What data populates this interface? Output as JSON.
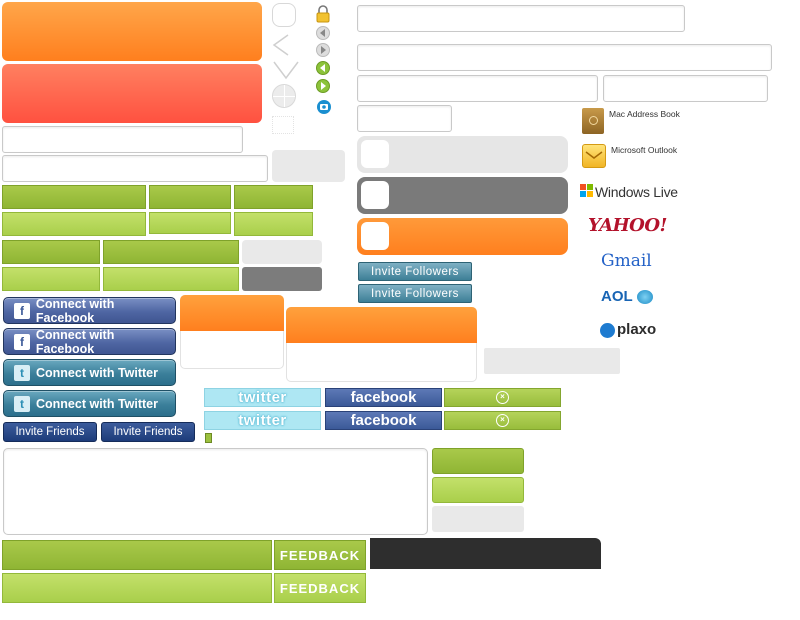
{
  "social": {
    "connect_facebook_1": "Connect with Facebook",
    "connect_facebook_2": "Connect with Facebook",
    "connect_twitter_1": "Connect with Twitter",
    "connect_twitter_2": "Connect with Twitter",
    "facebook_icon_glyph": "f",
    "twitter_icon_glyph": "t",
    "twitter_button_1": "twitter",
    "twitter_button_2": "twitter",
    "facebook_button_1": "facebook",
    "facebook_button_2": "facebook"
  },
  "invite": {
    "friends_1": "Invite Friends",
    "friends_2": "Invite Friends",
    "followers_1": "Invite Followers",
    "followers_2": "Invite Followers"
  },
  "services": {
    "mac_address_book": "Mac Address Book",
    "microsoft_outlook": "Microsoft Outlook",
    "windows_live": "Windows Live",
    "yahoo": "YAHOO!",
    "gmail": "Gmail",
    "aol": "AOL",
    "plaxo": "plaxo"
  },
  "feedback": {
    "label_1": "FEEDBACK",
    "label_2": "FEEDBACK"
  },
  "colors": {
    "orange": "#ff8a2a",
    "red": "#ff5a46",
    "green": "#9cc13f",
    "facebook_blue": "#3b5998",
    "twitter_teal": "#3b7f9a",
    "dark_bar": "#2e2e2e"
  }
}
